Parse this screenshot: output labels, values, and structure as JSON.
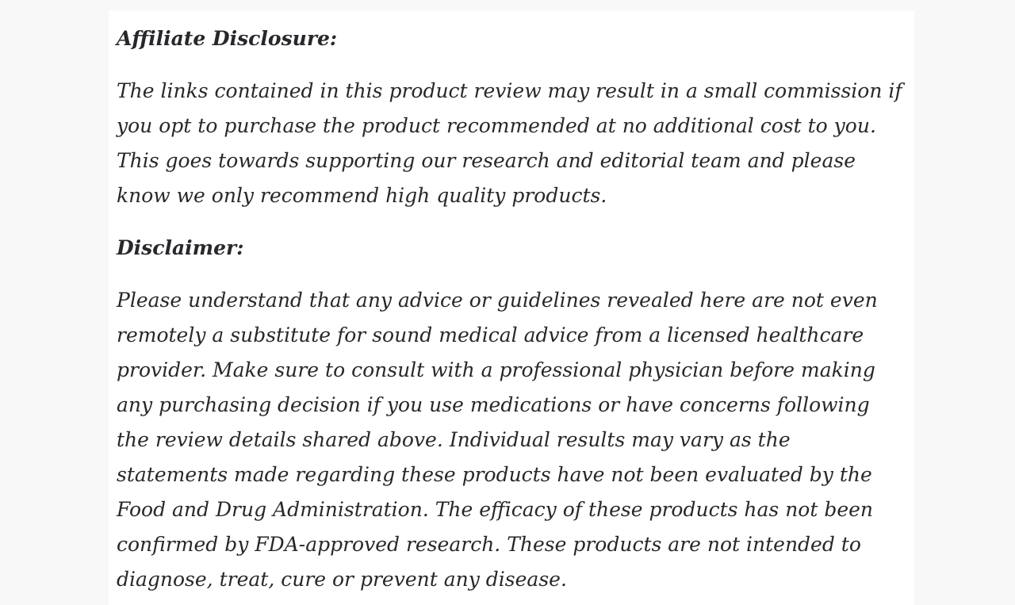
{
  "page": {
    "background_color": "#f8f8f8",
    "card_background_color": "#ffffff",
    "text_color": "#26282b"
  },
  "content": {
    "sections": [
      {
        "heading": "Affiliate Disclosure:",
        "paragraph": "The links contained in this product review may result in a small commission if you opt to purchase the product recommended at no additional cost to you. This goes towards supporting our research and editorial team and please know we only recommend high quality products."
      },
      {
        "heading": "Disclaimer:",
        "paragraph": "Please understand that any advice or guidelines revealed here are not even remotely a substitute for sound medical advice from a licensed healthcare provider. Make sure to consult with a professional physician before making any purchasing decision if you use medications or have concerns following the review details shared above. Individual results may vary as the statements made regarding these products have not been evaluated by the Food and Drug Administration. The efficacy of these products has not been confirmed by FDA-approved research. These products are not intended to diagnose, treat, cure or prevent any disease."
      }
    ]
  }
}
